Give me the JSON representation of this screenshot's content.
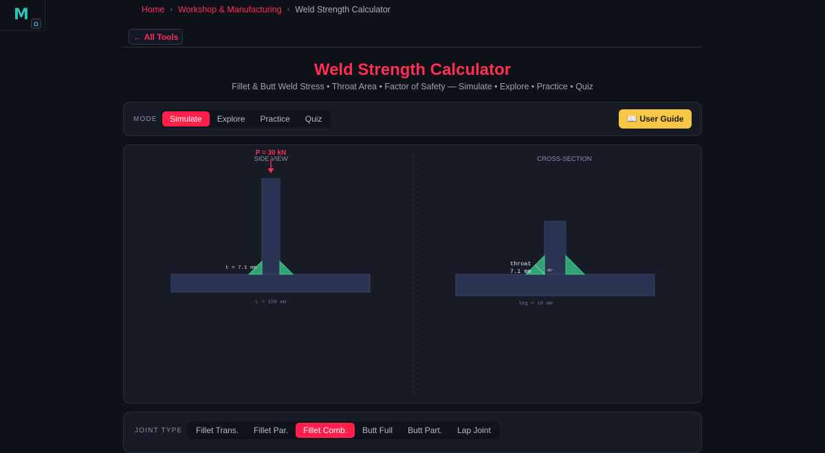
{
  "logo": {
    "letter": "M"
  },
  "breadcrumb": {
    "home": "Home",
    "category": "Workshop & Manufacturing",
    "current": "Weld Strength Calculator",
    "separator": "›"
  },
  "back_button": {
    "arrow": "←",
    "label": "All Tools"
  },
  "header": {
    "title": "Weld Strength Calculator",
    "subtitle": "Fillet & Butt Weld Stress • Throat Area • Factor of Safety — Simulate • Explore • Practice • Quiz"
  },
  "mode": {
    "label": "MODE",
    "options": [
      "Simulate",
      "Explore",
      "Practice",
      "Quiz"
    ],
    "selected": "Simulate"
  },
  "user_guide": {
    "icon": "📖",
    "label": "User Guide"
  },
  "visualization": {
    "side_view": {
      "heading": "SIDE VIEW",
      "load_label": "P = 30 kN",
      "throat_label": "t = 7.1 mm",
      "length_label": "L = 150 mm"
    },
    "cross_section": {
      "heading": "CROSS-SECTION",
      "throat_label_line1": "throat",
      "throat_label_line2": "7.1 mm",
      "angle_label": "45°",
      "leg_label": "leg = 10 mm"
    }
  },
  "joint_type": {
    "label": "JOINT TYPE",
    "options": [
      "Fillet Trans.",
      "Fillet Par.",
      "Fillet Comb.",
      "Butt Full",
      "Butt Part.",
      "Lap Joint"
    ],
    "selected": "Fillet Comb."
  },
  "colors": {
    "accent": "#ff1f4b",
    "guide": "#f6c744",
    "weld": "#3ecf8e",
    "plate": "#2a3352"
  }
}
